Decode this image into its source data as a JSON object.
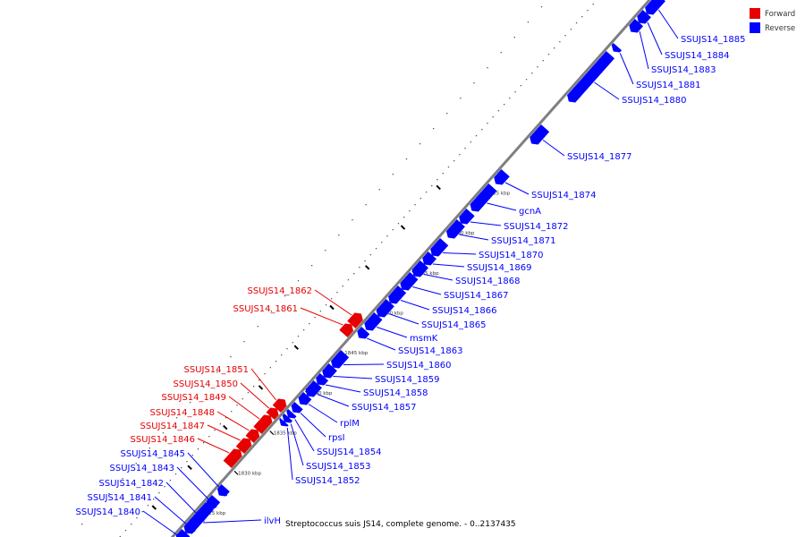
{
  "caption": "Streptococcus suis JS14, complete genome. - 0..2137435",
  "colors": {
    "forward": "#e60000",
    "reverse": "#0000ff",
    "backbone": "#7f7f7f"
  },
  "legend": [
    {
      "label": "Forward",
      "color": "#e60000"
    },
    {
      "label": "Reverse",
      "color": "#0000ff"
    }
  ],
  "axis": {
    "ticks": [
      "1825 kbp",
      "1830 kbp",
      "1835 kbp",
      "1840 kbp",
      "1845 kbp",
      "1850 kbp",
      "1855 kbp",
      "1860 kbp",
      "1865 kbp"
    ]
  },
  "genes": [
    {
      "name": "ilvH",
      "strand": "reverse"
    },
    {
      "name": "SSUJS14_1840",
      "strand": "reverse"
    },
    {
      "name": "SSUJS14_1841",
      "strand": "reverse"
    },
    {
      "name": "SSUJS14_1842",
      "strand": "reverse"
    },
    {
      "name": "SSUJS14_1843",
      "strand": "reverse"
    },
    {
      "name": "SSUJS14_1845",
      "strand": "reverse"
    },
    {
      "name": "SSUJS14_1846",
      "strand": "forward"
    },
    {
      "name": "SSUJS14_1847",
      "strand": "forward"
    },
    {
      "name": "SSUJS14_1848",
      "strand": "forward"
    },
    {
      "name": "SSUJS14_1849",
      "strand": "forward"
    },
    {
      "name": "SSUJS14_1850",
      "strand": "forward"
    },
    {
      "name": "SSUJS14_1851",
      "strand": "forward"
    },
    {
      "name": "SSUJS14_1852",
      "strand": "reverse"
    },
    {
      "name": "SSUJS14_1853",
      "strand": "reverse"
    },
    {
      "name": "SSUJS14_1854",
      "strand": "reverse"
    },
    {
      "name": "rpsI",
      "strand": "reverse"
    },
    {
      "name": "rplM",
      "strand": "reverse"
    },
    {
      "name": "SSUJS14_1857",
      "strand": "reverse"
    },
    {
      "name": "SSUJS14_1858",
      "strand": "reverse"
    },
    {
      "name": "SSUJS14_1859",
      "strand": "reverse"
    },
    {
      "name": "SSUJS14_1860",
      "strand": "reverse"
    },
    {
      "name": "SSUJS14_1861",
      "strand": "forward"
    },
    {
      "name": "SSUJS14_1862",
      "strand": "forward"
    },
    {
      "name": "SSUJS14_1863",
      "strand": "reverse"
    },
    {
      "name": "msmK",
      "strand": "reverse"
    },
    {
      "name": "SSUJS14_1865",
      "strand": "reverse"
    },
    {
      "name": "SSUJS14_1866",
      "strand": "reverse"
    },
    {
      "name": "SSUJS14_1867",
      "strand": "reverse"
    },
    {
      "name": "SSUJS14_1868",
      "strand": "reverse"
    },
    {
      "name": "SSUJS14_1869",
      "strand": "reverse"
    },
    {
      "name": "SSUJS14_1870",
      "strand": "reverse"
    },
    {
      "name": "SSUJS14_1871",
      "strand": "reverse"
    },
    {
      "name": "SSUJS14_1872",
      "strand": "reverse"
    },
    {
      "name": "gcnA",
      "strand": "reverse"
    },
    {
      "name": "SSUJS14_1874",
      "strand": "reverse"
    },
    {
      "name": "SSUJS14_1877",
      "strand": "reverse"
    },
    {
      "name": "SSUJS14_1880",
      "strand": "reverse"
    },
    {
      "name": "SSUJS14_1881",
      "strand": "reverse"
    },
    {
      "name": "SSUJS14_1883",
      "strand": "reverse"
    },
    {
      "name": "SSUJS14_1884",
      "strand": "reverse"
    },
    {
      "name": "SSUJS14_1885",
      "strand": "reverse"
    }
  ]
}
